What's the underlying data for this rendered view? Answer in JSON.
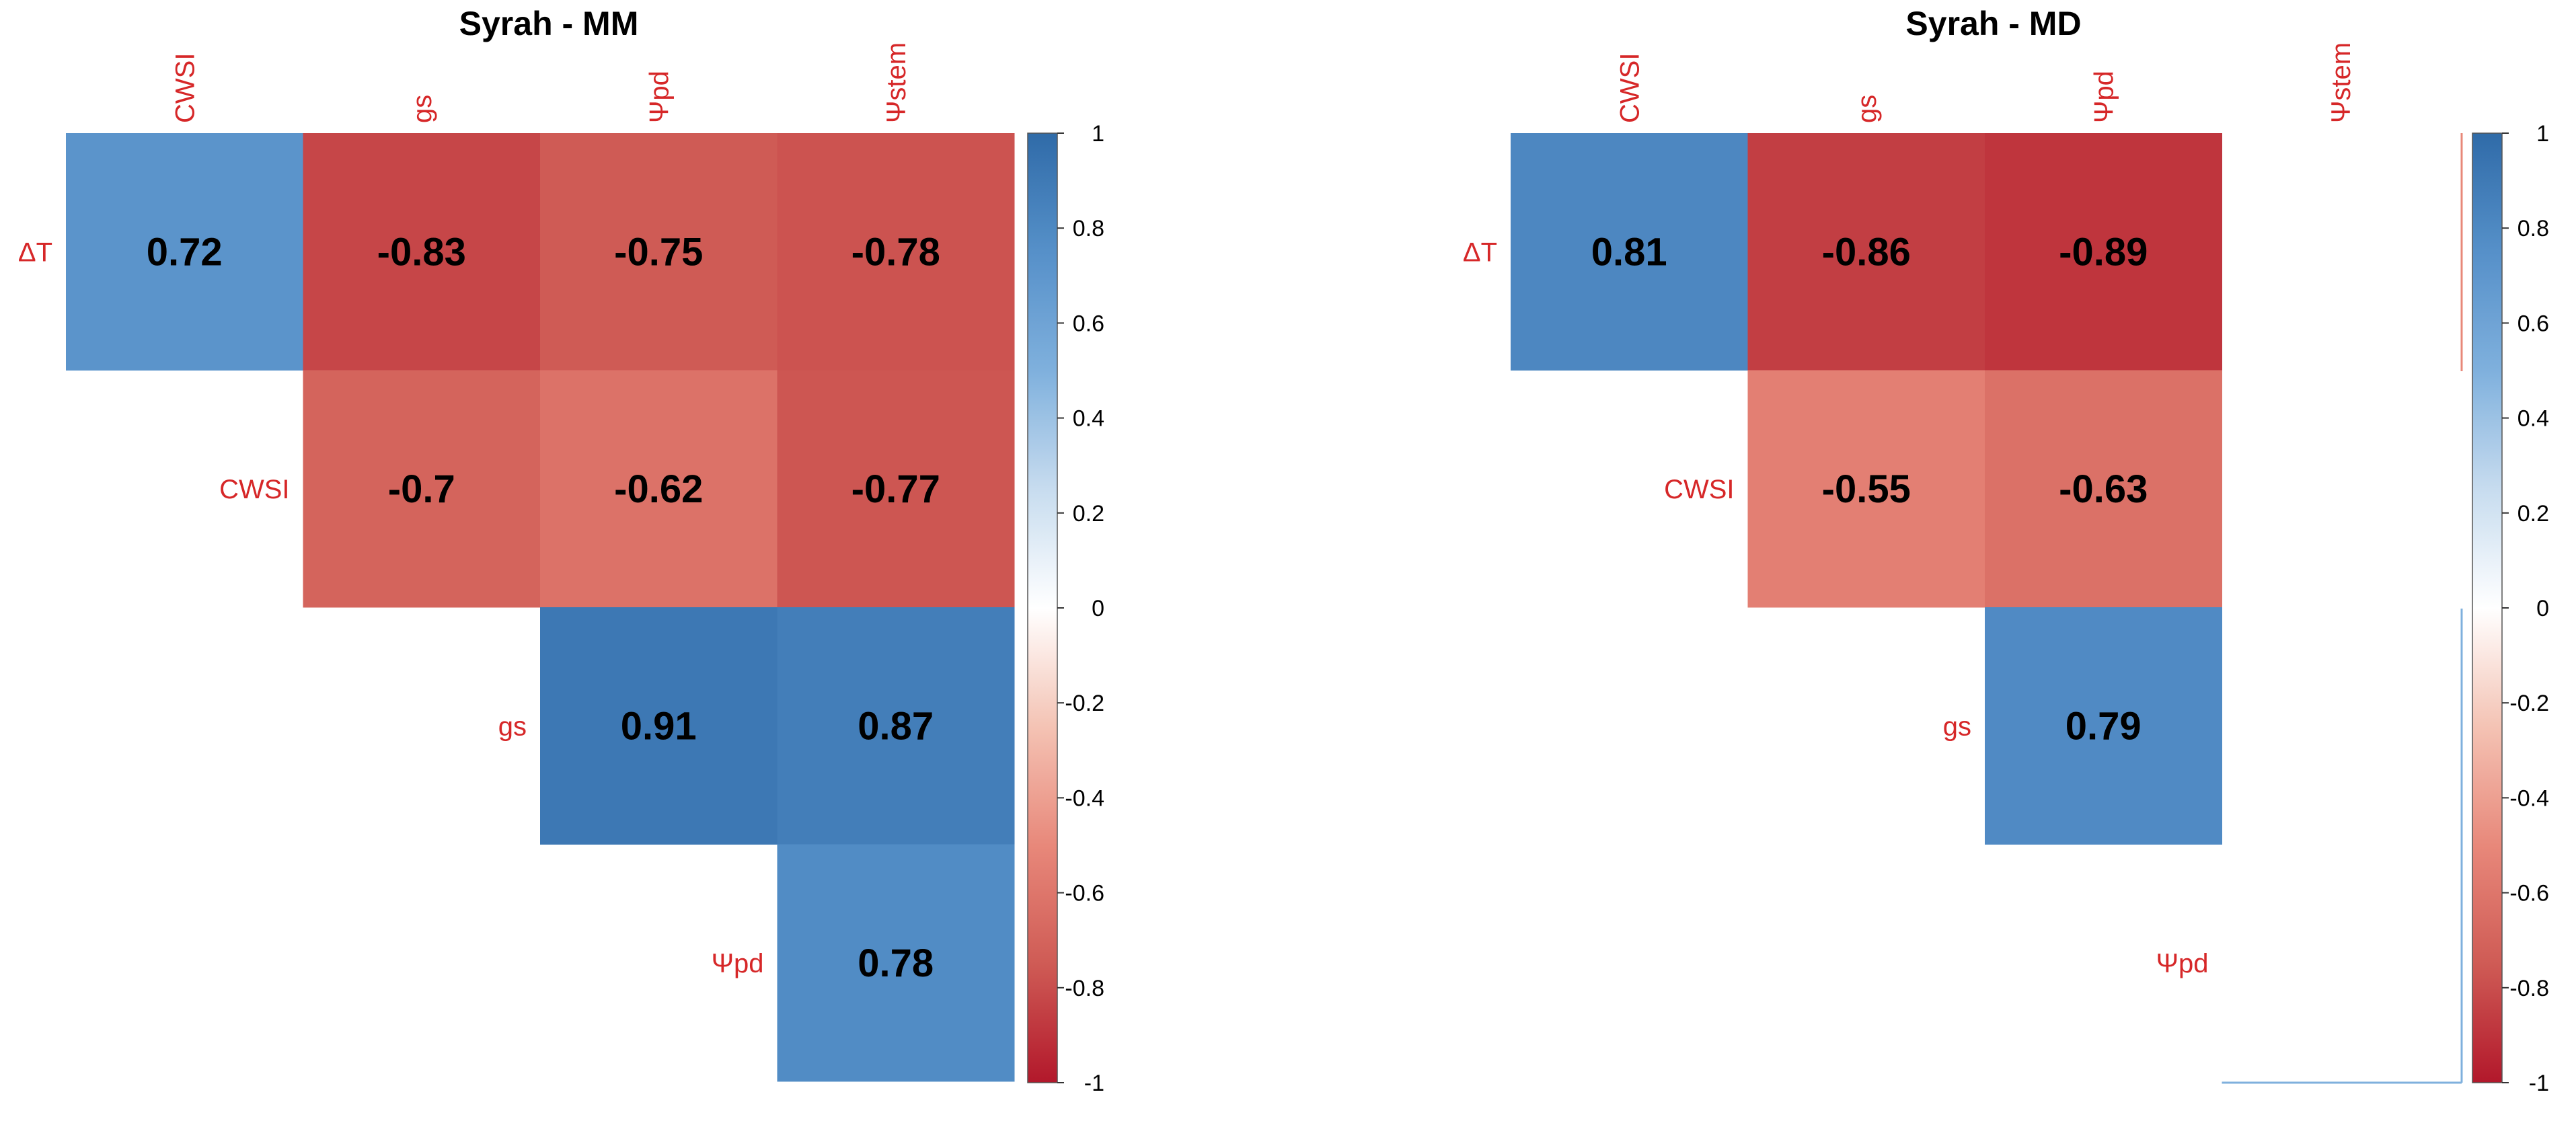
{
  "chart_data": [
    {
      "type": "heatmap",
      "title": "Syrah - MM",
      "col_labels": [
        "CWSI",
        "gs",
        "Ψpd",
        "Ψstem"
      ],
      "row_labels": [
        "ΔT",
        "CWSI",
        "gs",
        "Ψpd"
      ],
      "cells": [
        {
          "row": 0,
          "col": 0,
          "value": 0.72,
          "label": "0.72"
        },
        {
          "row": 0,
          "col": 1,
          "value": -0.83,
          "label": "-0.83"
        },
        {
          "row": 0,
          "col": 2,
          "value": -0.75,
          "label": "-0.75"
        },
        {
          "row": 0,
          "col": 3,
          "value": -0.78,
          "label": "-0.78"
        },
        {
          "row": 1,
          "col": 1,
          "value": -0.7,
          "label": "-0.7"
        },
        {
          "row": 1,
          "col": 2,
          "value": -0.62,
          "label": "-0.62"
        },
        {
          "row": 1,
          "col": 3,
          "value": -0.77,
          "label": "-0.77"
        },
        {
          "row": 2,
          "col": 2,
          "value": 0.91,
          "label": "0.91"
        },
        {
          "row": 2,
          "col": 3,
          "value": 0.87,
          "label": "0.87"
        },
        {
          "row": 3,
          "col": 3,
          "value": 0.78,
          "label": "0.78"
        }
      ],
      "colorbar": {
        "range": [
          -1,
          1
        ],
        "ticks": [
          "1",
          "0.8",
          "0.6",
          "0.4",
          "0.2",
          "0",
          "-0.2",
          "-0.4",
          "-0.6",
          "-0.8",
          "-1"
        ]
      }
    },
    {
      "type": "heatmap",
      "title": "Syrah - MD",
      "col_labels": [
        "CWSI",
        "gs",
        "Ψpd",
        "Ψstem"
      ],
      "row_labels": [
        "ΔT",
        "CWSI",
        "gs",
        "Ψpd"
      ],
      "cells": [
        {
          "row": 0,
          "col": 0,
          "value": 0.81,
          "label": "0.81"
        },
        {
          "row": 0,
          "col": 1,
          "value": -0.86,
          "label": "-0.86"
        },
        {
          "row": 0,
          "col": 2,
          "value": -0.89,
          "label": "-0.89"
        },
        {
          "row": 1,
          "col": 1,
          "value": -0.55,
          "label": "-0.55"
        },
        {
          "row": 1,
          "col": 2,
          "value": -0.63,
          "label": "-0.63"
        },
        {
          "row": 2,
          "col": 2,
          "value": 0.79,
          "label": "0.79"
        }
      ],
      "colorbar": {
        "range": [
          -1,
          1
        ],
        "ticks": [
          "1",
          "0.8",
          "0.6",
          "0.4",
          "0.2",
          "0",
          "-0.2",
          "-0.4",
          "-0.6",
          "-0.8",
          "-1"
        ]
      }
    }
  ],
  "colors": {
    "label": "#d62728",
    "neg": "#b2182b",
    "zero": "#ffffff",
    "pos": "#2166ac",
    "axis": "#000000"
  }
}
